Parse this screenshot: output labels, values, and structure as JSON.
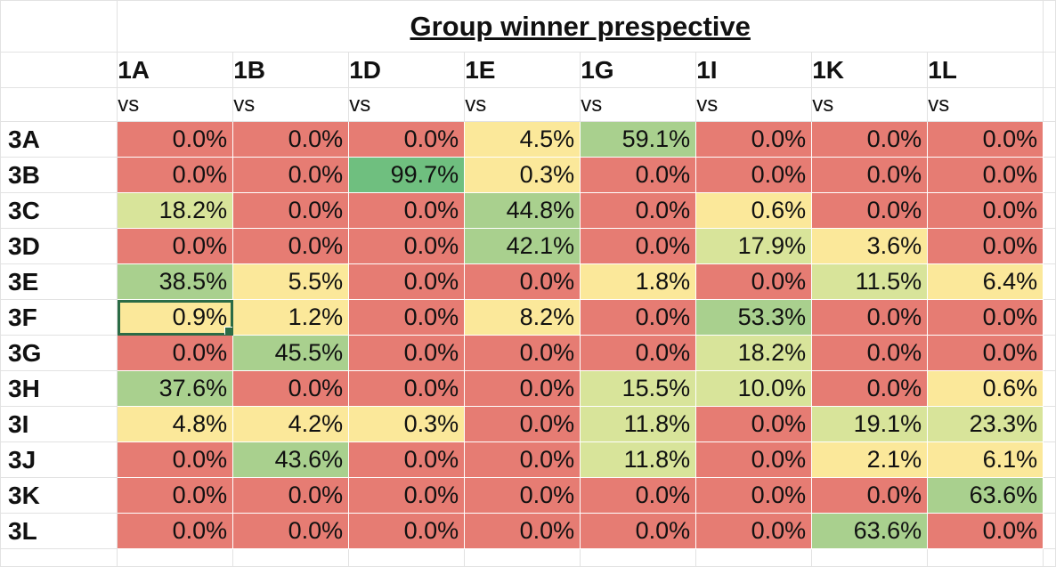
{
  "sheet": {
    "title": "Group winner prespective",
    "columns": [
      "1A",
      "1B",
      "1D",
      "1E",
      "1G",
      "1I",
      "1K",
      "1L"
    ],
    "subheader": "vs",
    "rows": [
      {
        "label": "3A",
        "values": [
          "0.0%",
          "0.0%",
          "0.0%",
          "4.5%",
          "59.1%",
          "0.0%",
          "0.0%",
          "0.0%"
        ]
      },
      {
        "label": "3B",
        "values": [
          "0.0%",
          "0.0%",
          "99.7%",
          "0.3%",
          "0.0%",
          "0.0%",
          "0.0%",
          "0.0%"
        ]
      },
      {
        "label": "3C",
        "values": [
          "18.2%",
          "0.0%",
          "0.0%",
          "44.8%",
          "0.0%",
          "0.6%",
          "0.0%",
          "0.0%"
        ]
      },
      {
        "label": "3D",
        "values": [
          "0.0%",
          "0.0%",
          "0.0%",
          "42.1%",
          "0.0%",
          "17.9%",
          "3.6%",
          "0.0%"
        ]
      },
      {
        "label": "3E",
        "values": [
          "38.5%",
          "5.5%",
          "0.0%",
          "0.0%",
          "1.8%",
          "0.0%",
          "11.5%",
          "6.4%"
        ]
      },
      {
        "label": "3F",
        "values": [
          "0.9%",
          "1.2%",
          "0.0%",
          "8.2%",
          "0.0%",
          "53.3%",
          "0.0%",
          "0.0%"
        ]
      },
      {
        "label": "3G",
        "values": [
          "0.0%",
          "45.5%",
          "0.0%",
          "0.0%",
          "0.0%",
          "18.2%",
          "0.0%",
          "0.0%"
        ]
      },
      {
        "label": "3H",
        "values": [
          "37.6%",
          "0.0%",
          "0.0%",
          "0.0%",
          "15.5%",
          "10.0%",
          "0.0%",
          "0.6%"
        ]
      },
      {
        "label": "3I",
        "values": [
          "4.8%",
          "4.2%",
          "0.3%",
          "0.0%",
          "11.8%",
          "0.0%",
          "19.1%",
          "23.3%"
        ]
      },
      {
        "label": "3J",
        "values": [
          "0.0%",
          "43.6%",
          "0.0%",
          "0.0%",
          "11.8%",
          "0.0%",
          "2.1%",
          "6.1%"
        ]
      },
      {
        "label": "3K",
        "values": [
          "0.0%",
          "0.0%",
          "0.0%",
          "0.0%",
          "0.0%",
          "0.0%",
          "0.0%",
          "63.6%"
        ]
      },
      {
        "label": "3L",
        "values": [
          "0.0%",
          "0.0%",
          "0.0%",
          "0.0%",
          "0.0%",
          "0.0%",
          "63.6%",
          "0.0%"
        ]
      }
    ],
    "selected_cell": {
      "row": 5,
      "col": 0
    },
    "colors": {
      "zero": "#e67c73",
      "low": "#fbe89a",
      "mid": "#d8e49a",
      "high": "#a9d08e",
      "max": "#6fbf7f"
    }
  }
}
